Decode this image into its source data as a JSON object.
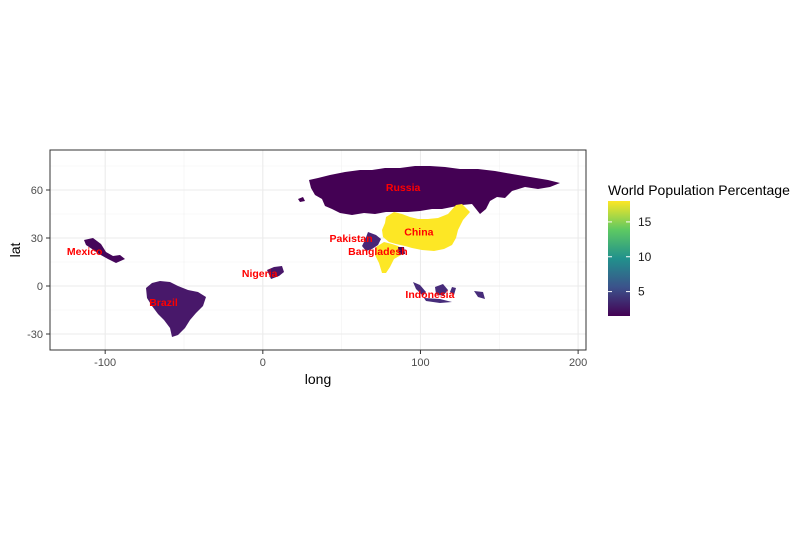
{
  "chart_data": {
    "type": "choropleth",
    "title": "",
    "xlabel": "long",
    "ylabel": "lat",
    "xlim": [
      -135,
      205
    ],
    "ylim": [
      -40,
      85
    ],
    "x_ticks": [
      -100,
      0,
      100,
      200
    ],
    "y_ticks": [
      -30,
      0,
      30,
      60
    ],
    "grid": true,
    "legend": {
      "title": "World Population Percentage",
      "position": "right",
      "ticks": [
        5,
        10,
        15
      ],
      "range": [
        1.5,
        18
      ],
      "colormap": [
        "#440154",
        "#3b528b",
        "#21918c",
        "#5ec962",
        "#fde725"
      ]
    },
    "countries": [
      {
        "name": "China",
        "label_long": 99,
        "label_lat": 34,
        "value": 18
      },
      {
        "name": "Pakistan",
        "label_long": 56,
        "label_lat": 30,
        "value": 2.8
      },
      {
        "name": "Bangladesh",
        "label_long": 73,
        "label_lat": 22,
        "value": 2.1
      },
      {
        "name": "Russia",
        "label_long": 89,
        "label_lat": 62,
        "value": 1.8
      },
      {
        "name": "Mexico",
        "label_long": -113,
        "label_lat": 22,
        "value": 1.6
      },
      {
        "name": "Nigeria",
        "label_long": -2,
        "label_lat": 8,
        "value": 2.6
      },
      {
        "name": "Brazil",
        "label_long": -63,
        "label_lat": -10,
        "value": 2.7
      },
      {
        "name": "Indonesia",
        "label_long": 106,
        "label_lat": -5,
        "value": 3.5
      }
    ]
  }
}
